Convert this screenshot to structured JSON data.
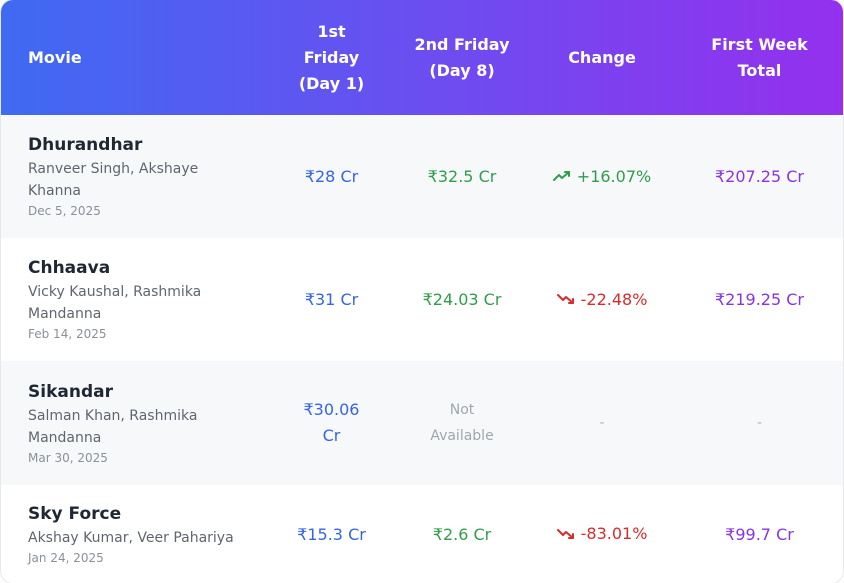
{
  "header": {
    "movie": "Movie",
    "first_friday": [
      "1st",
      "Friday",
      "(Day 1)"
    ],
    "second_friday": [
      "2nd Friday",
      "(Day 8)"
    ],
    "change": "Change",
    "first_week": [
      "First Week",
      "Total"
    ]
  },
  "rows": [
    {
      "title": "Dhurandhar",
      "cast": "Ranveer Singh, Akshaye Khanna",
      "date": "Dec 5, 2025",
      "day1": "₹28 Cr",
      "day8": "₹32.5 Cr",
      "change": "+16.07%",
      "trend": "up",
      "total": "₹207.25 Cr"
    },
    {
      "title": "Chhaava",
      "cast": "Vicky Kaushal, Rashmika Mandanna",
      "date": "Feb 14, 2025",
      "day1": "₹31 Cr",
      "day8": "₹24.03 Cr",
      "change": "-22.48%",
      "trend": "down",
      "total": "₹219.25 Cr"
    },
    {
      "title": "Sikandar",
      "cast": "Salman Khan, Rashmika Mandanna",
      "date": "Mar 30, 2025",
      "day1": [
        "₹30.06",
        "Cr"
      ],
      "day8": [
        "Not",
        "Available"
      ],
      "change": "-",
      "total": "-"
    },
    {
      "title": "Sky Force",
      "cast": "Akshay Kumar, Veer Pahariya",
      "date": "Jan 24, 2025",
      "day1": "₹15.3 Cr",
      "day8": "₹2.6 Cr",
      "change": "-83.01%",
      "trend": "down",
      "total": "₹99.7 Cr"
    }
  ],
  "icons": {
    "up": "trending-up-icon",
    "down": "trending-down-icon"
  },
  "colors": {
    "blue": "#3565e6",
    "green": "#2f9e4a",
    "red": "#d92b2b",
    "purple": "#8a33e5"
  }
}
